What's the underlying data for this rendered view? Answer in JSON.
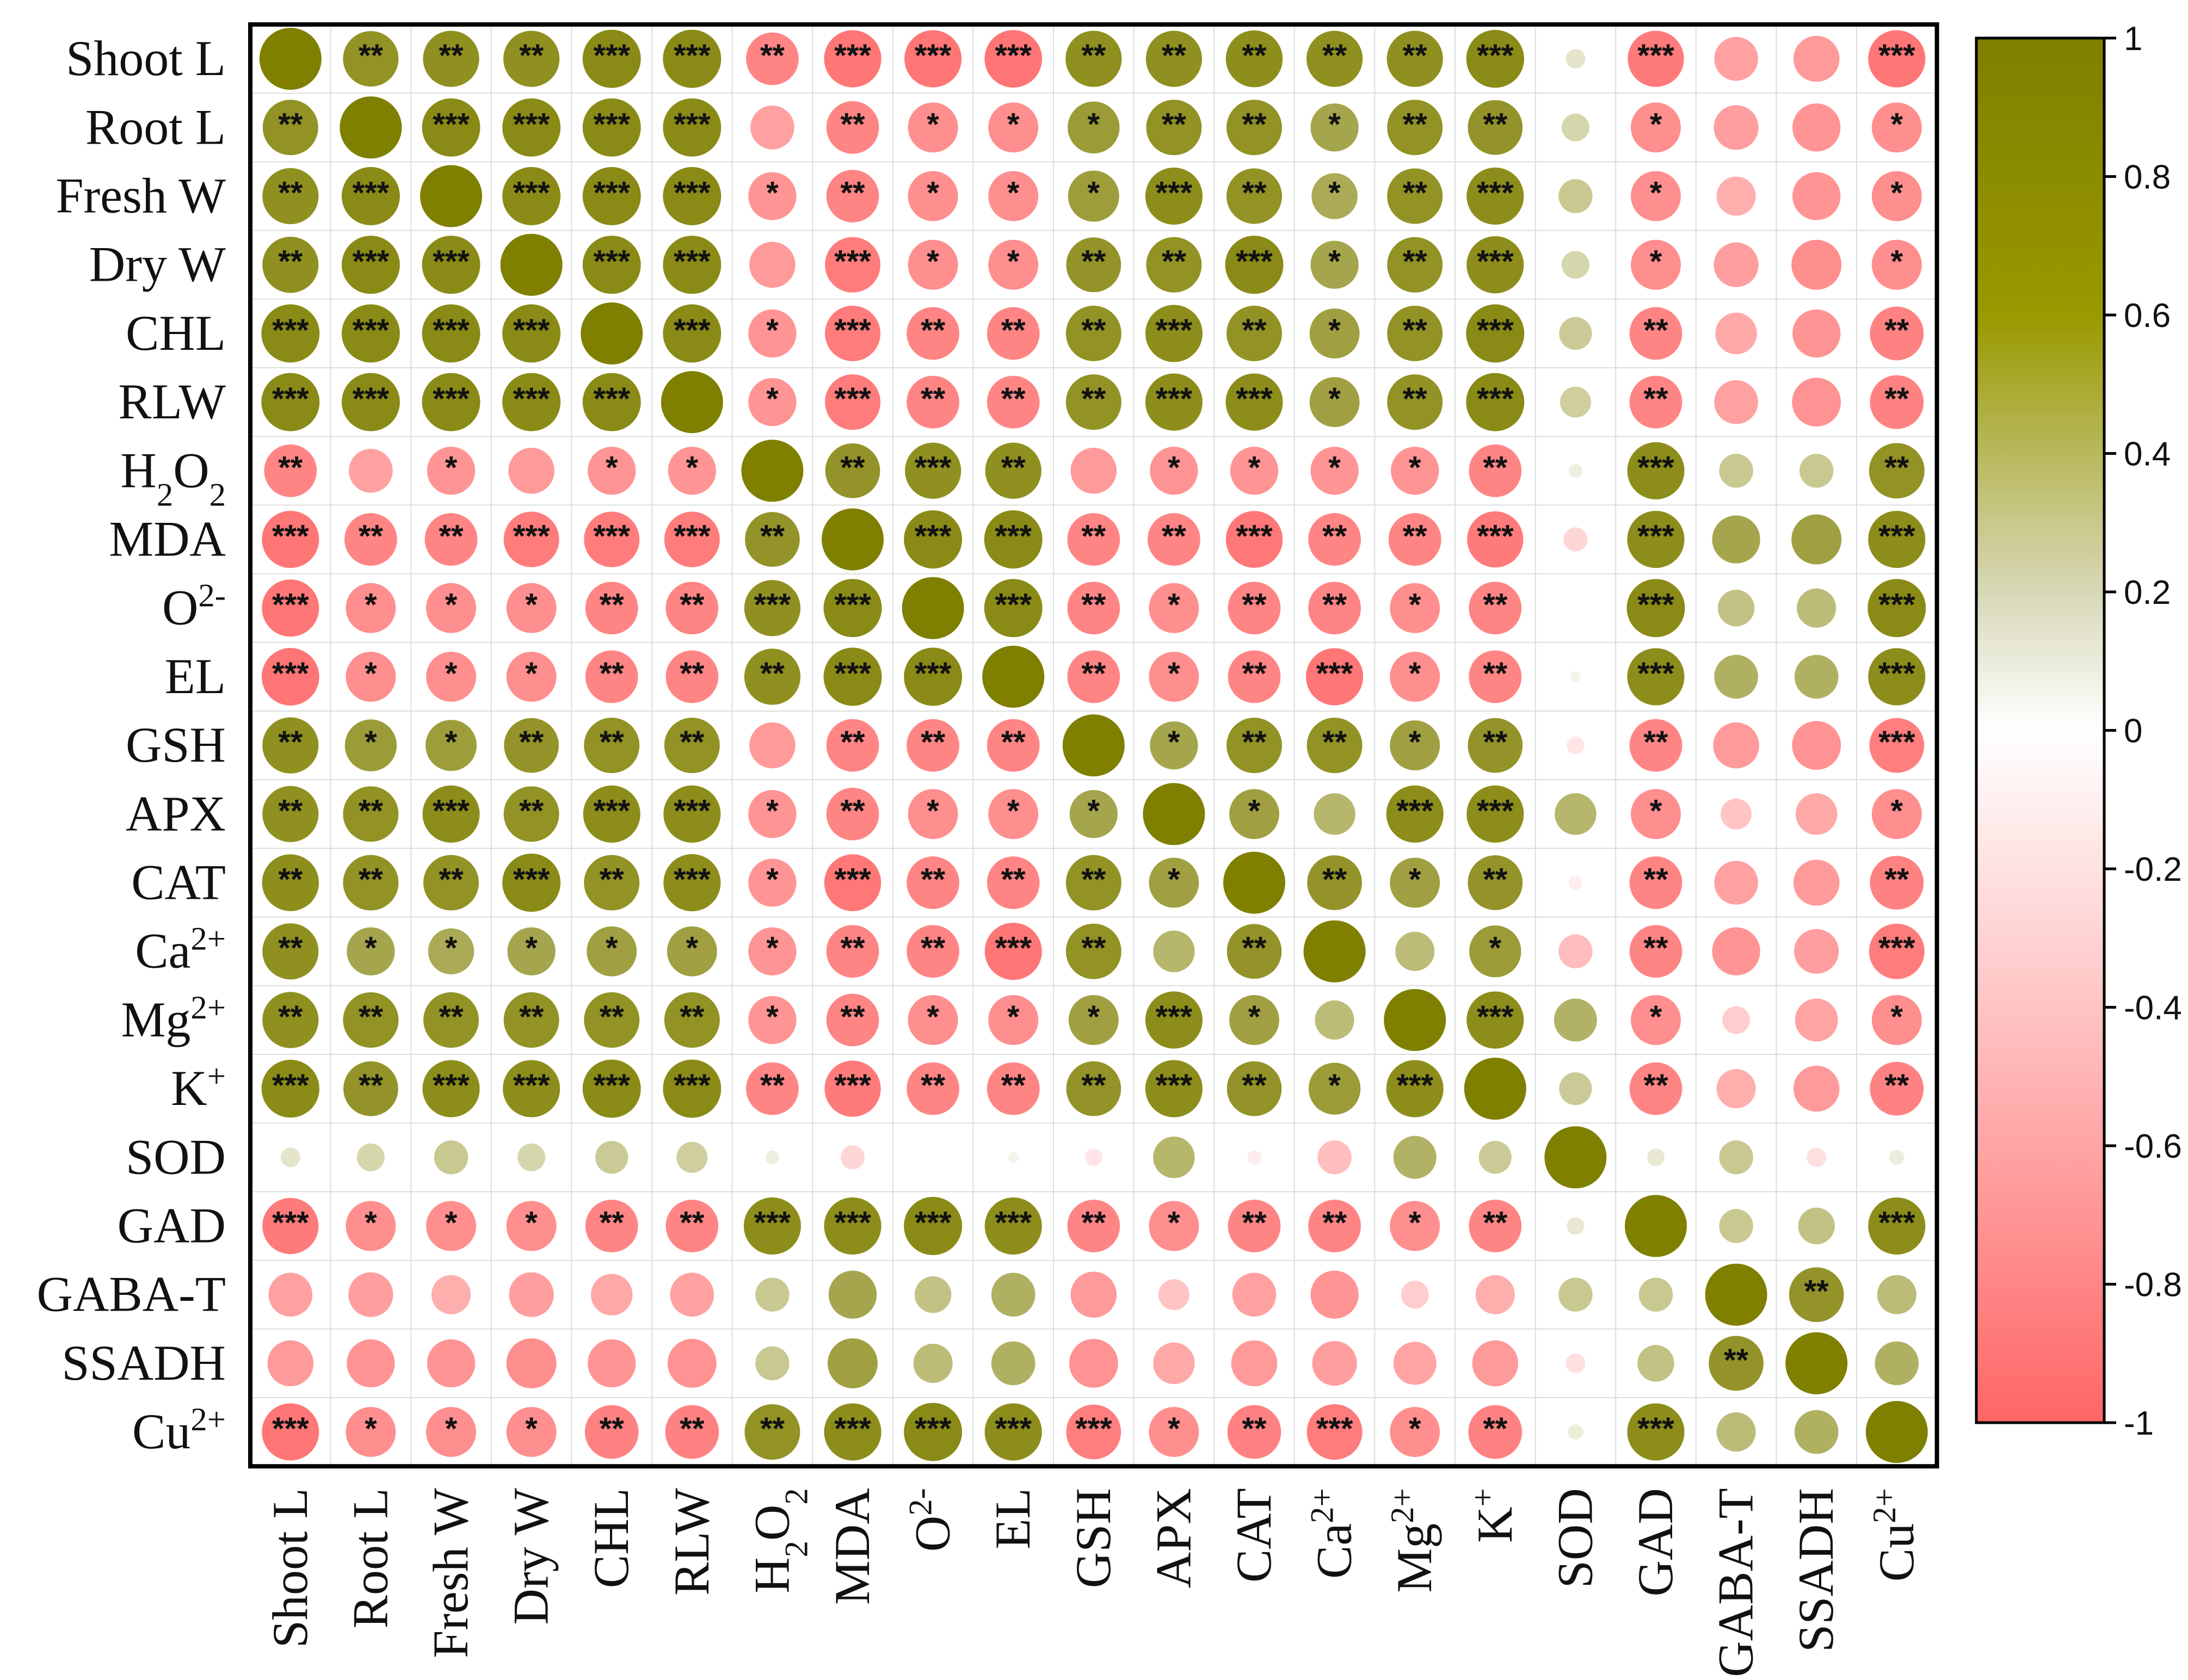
{
  "chart_data": {
    "type": "heatmap",
    "title": "",
    "subtype": "correlation-circle-matrix",
    "variables": [
      {
        "key": "Shoot L",
        "base": "Shoot L",
        "sub": "",
        "sup": ""
      },
      {
        "key": "Root L",
        "base": "Root L",
        "sub": "",
        "sup": ""
      },
      {
        "key": "Fresh W",
        "base": "Fresh W",
        "sub": "",
        "sup": ""
      },
      {
        "key": "Dry W",
        "base": "Dry W",
        "sub": "",
        "sup": ""
      },
      {
        "key": "CHL",
        "base": "CHL",
        "sub": "",
        "sup": ""
      },
      {
        "key": "RLW",
        "base": "RLW",
        "sub": "",
        "sup": ""
      },
      {
        "key": "H2O2",
        "base": "H",
        "sub": "2",
        "mid": "O",
        "sub2": "2",
        "sup": ""
      },
      {
        "key": "MDA",
        "base": "MDA",
        "sub": "",
        "sup": ""
      },
      {
        "key": "O2-",
        "base": "O",
        "sub": "",
        "sup": "2-"
      },
      {
        "key": "EL",
        "base": "EL",
        "sub": "",
        "sup": ""
      },
      {
        "key": "GSH",
        "base": "GSH",
        "sub": "",
        "sup": ""
      },
      {
        "key": "APX",
        "base": "APX",
        "sub": "",
        "sup": ""
      },
      {
        "key": "CAT",
        "base": "CAT",
        "sub": "",
        "sup": ""
      },
      {
        "key": "Ca2+",
        "base": "Ca",
        "sub": "",
        "sup": "2+"
      },
      {
        "key": "Mg2+",
        "base": "Mg",
        "sub": "",
        "sup": "2+"
      },
      {
        "key": "K+",
        "base": "K",
        "sub": "",
        "sup": "+"
      },
      {
        "key": "SOD",
        "base": "SOD",
        "sub": "",
        "sup": ""
      },
      {
        "key": "GAD",
        "base": "GAD",
        "sub": "",
        "sup": ""
      },
      {
        "key": "GABA-T",
        "base": "GABA-T",
        "sub": "",
        "sup": ""
      },
      {
        "key": "SSADH",
        "base": "SSADH",
        "sub": "",
        "sup": ""
      },
      {
        "key": "Cu2+",
        "base": "Cu",
        "sub": "",
        "sup": "2+"
      }
    ],
    "values": [
      [
        1.0,
        0.8,
        0.82,
        0.82,
        0.88,
        0.88,
        -0.72,
        -0.85,
        -0.85,
        -0.86,
        0.82,
        0.82,
        0.84,
        0.82,
        0.82,
        0.87,
        0.1,
        -0.82,
        -0.5,
        -0.55,
        -0.85
      ],
      [
        0.8,
        1.0,
        0.88,
        0.88,
        0.88,
        0.88,
        -0.5,
        -0.72,
        -0.65,
        -0.65,
        0.7,
        0.8,
        0.8,
        0.6,
        0.8,
        0.78,
        0.2,
        -0.65,
        -0.52,
        -0.6,
        -0.65
      ],
      [
        0.82,
        0.88,
        1.0,
        0.88,
        0.88,
        0.88,
        -0.6,
        -0.72,
        -0.65,
        -0.65,
        0.68,
        0.85,
        0.8,
        0.55,
        0.8,
        0.85,
        0.3,
        -0.65,
        -0.4,
        -0.6,
        -0.65
      ],
      [
        0.82,
        0.88,
        0.88,
        1.0,
        0.88,
        0.88,
        -0.55,
        -0.8,
        -0.65,
        -0.65,
        0.78,
        0.8,
        0.88,
        0.6,
        0.8,
        0.85,
        0.2,
        -0.65,
        -0.52,
        -0.65,
        -0.65
      ],
      [
        0.88,
        0.88,
        0.88,
        0.88,
        1.0,
        0.88,
        -0.6,
        -0.8,
        -0.72,
        -0.72,
        0.8,
        0.85,
        0.8,
        0.65,
        0.8,
        0.88,
        0.28,
        -0.72,
        -0.45,
        -0.6,
        -0.75
      ],
      [
        0.88,
        0.88,
        0.88,
        0.88,
        0.88,
        1.0,
        -0.6,
        -0.8,
        -0.72,
        -0.72,
        0.8,
        0.85,
        0.85,
        0.65,
        0.8,
        0.88,
        0.25,
        -0.72,
        -0.5,
        -0.62,
        -0.75
      ],
      [
        -0.72,
        -0.5,
        -0.6,
        -0.55,
        -0.6,
        -0.6,
        1.0,
        0.78,
        0.82,
        0.82,
        -0.55,
        -0.6,
        -0.6,
        -0.6,
        -0.6,
        -0.72,
        0.05,
        0.85,
        0.3,
        0.3,
        0.8
      ],
      [
        -0.85,
        -0.72,
        -0.72,
        -0.8,
        -0.8,
        -0.8,
        0.78,
        1.0,
        0.88,
        0.88,
        -0.72,
        -0.72,
        -0.84,
        -0.72,
        -0.72,
        -0.82,
        -0.15,
        0.85,
        0.6,
        0.65,
        0.85
      ],
      [
        -0.85,
        -0.65,
        -0.65,
        -0.65,
        -0.72,
        -0.72,
        0.82,
        0.88,
        1.0,
        0.88,
        -0.72,
        -0.65,
        -0.72,
        -0.72,
        -0.65,
        -0.72,
        0.0,
        0.88,
        0.35,
        0.4,
        0.88
      ],
      [
        -0.86,
        -0.65,
        -0.65,
        -0.65,
        -0.72,
        -0.72,
        0.82,
        0.88,
        0.88,
        1.0,
        -0.72,
        -0.65,
        -0.72,
        -0.85,
        -0.65,
        -0.72,
        0.03,
        0.85,
        0.5,
        0.5,
        0.85
      ],
      [
        0.82,
        0.7,
        0.68,
        0.78,
        0.8,
        0.8,
        -0.55,
        -0.72,
        -0.72,
        -0.72,
        1.0,
        0.6,
        0.8,
        0.8,
        0.65,
        0.78,
        -0.08,
        -0.72,
        -0.55,
        -0.62,
        -0.78
      ],
      [
        0.82,
        0.8,
        0.85,
        0.8,
        0.85,
        0.85,
        -0.6,
        -0.72,
        -0.65,
        -0.65,
        0.6,
        1.0,
        0.65,
        0.45,
        0.85,
        0.85,
        0.45,
        -0.65,
        -0.25,
        -0.45,
        -0.65
      ],
      [
        0.84,
        0.8,
        0.8,
        0.88,
        0.8,
        0.85,
        -0.6,
        -0.84,
        -0.72,
        -0.72,
        0.8,
        0.65,
        1.0,
        0.78,
        0.65,
        0.78,
        -0.05,
        -0.72,
        -0.5,
        -0.55,
        -0.75
      ],
      [
        0.82,
        0.6,
        0.55,
        0.6,
        0.65,
        0.65,
        -0.6,
        -0.72,
        -0.72,
        -0.85,
        0.8,
        0.45,
        0.78,
        1.0,
        0.4,
        0.7,
        -0.3,
        -0.72,
        -0.6,
        -0.52,
        -0.8
      ],
      [
        0.82,
        0.8,
        0.8,
        0.8,
        0.8,
        0.8,
        -0.6,
        -0.72,
        -0.65,
        -0.65,
        0.65,
        0.85,
        0.65,
        0.4,
        1.0,
        0.85,
        0.48,
        -0.65,
        -0.2,
        -0.48,
        -0.65
      ],
      [
        0.87,
        0.78,
        0.85,
        0.85,
        0.88,
        0.88,
        -0.72,
        -0.82,
        -0.72,
        -0.72,
        0.78,
        0.85,
        0.78,
        0.7,
        0.85,
        1.0,
        0.28,
        -0.72,
        -0.4,
        -0.55,
        -0.75
      ],
      [
        0.1,
        0.2,
        0.3,
        0.2,
        0.28,
        0.25,
        0.05,
        -0.15,
        0.0,
        0.03,
        -0.08,
        0.45,
        -0.05,
        -0.3,
        0.48,
        0.28,
        1.0,
        0.08,
        0.3,
        -0.1,
        0.06
      ],
      [
        -0.82,
        -0.65,
        -0.65,
        -0.65,
        -0.72,
        -0.72,
        0.85,
        0.85,
        0.88,
        0.85,
        -0.72,
        -0.65,
        -0.72,
        -0.72,
        -0.65,
        -0.72,
        0.08,
        1.0,
        0.3,
        0.35,
        0.85
      ],
      [
        -0.5,
        -0.52,
        -0.4,
        -0.52,
        -0.45,
        -0.5,
        0.3,
        0.6,
        0.35,
        0.5,
        -0.55,
        -0.25,
        -0.5,
        -0.6,
        -0.2,
        -0.4,
        0.3,
        0.3,
        1.0,
        0.78,
        0.4
      ],
      [
        -0.55,
        -0.6,
        -0.6,
        -0.65,
        -0.6,
        -0.62,
        0.3,
        0.65,
        0.4,
        0.5,
        -0.62,
        -0.45,
        -0.55,
        -0.52,
        -0.48,
        -0.55,
        -0.1,
        0.35,
        0.78,
        1.0,
        0.5
      ],
      [
        -0.85,
        -0.65,
        -0.65,
        -0.65,
        -0.75,
        -0.75,
        0.8,
        0.85,
        0.88,
        0.85,
        -0.78,
        -0.65,
        -0.75,
        -0.8,
        -0.65,
        -0.75,
        0.06,
        0.85,
        0.4,
        0.5,
        1.0
      ]
    ],
    "significance": [
      [
        "",
        "**",
        "**",
        "**",
        "***",
        "***",
        "**",
        "***",
        "***",
        "***",
        "**",
        "**",
        "**",
        "**",
        "**",
        "***",
        "",
        "***",
        "",
        "",
        "***"
      ],
      [
        "**",
        "",
        "***",
        "***",
        "***",
        "***",
        "",
        "**",
        "*",
        "*",
        "*",
        "**",
        "**",
        "*",
        "**",
        "**",
        "",
        "*",
        "",
        "",
        "*"
      ],
      [
        "**",
        "***",
        "",
        "***",
        "***",
        "***",
        "*",
        "**",
        "*",
        "*",
        "*",
        "***",
        "**",
        "*",
        "**",
        "***",
        "",
        "*",
        "",
        "",
        "*"
      ],
      [
        "**",
        "***",
        "***",
        "",
        "***",
        "***",
        "",
        "***",
        "*",
        "*",
        "**",
        "**",
        "***",
        "*",
        "**",
        "***",
        "",
        "*",
        "",
        "",
        "*"
      ],
      [
        "***",
        "***",
        "***",
        "***",
        "",
        "***",
        "*",
        "***",
        "**",
        "**",
        "**",
        "***",
        "**",
        "*",
        "**",
        "***",
        "",
        "**",
        "",
        "",
        "**"
      ],
      [
        "***",
        "***",
        "***",
        "***",
        "***",
        "",
        "*",
        "***",
        "**",
        "**",
        "**",
        "***",
        "***",
        "*",
        "**",
        "***",
        "",
        "**",
        "",
        "",
        "**"
      ],
      [
        "**",
        "",
        "*",
        "",
        "*",
        "*",
        "",
        "**",
        "***",
        "**",
        "",
        "*",
        "*",
        "*",
        "*",
        "**",
        "",
        "***",
        "",
        "",
        "**"
      ],
      [
        "***",
        "**",
        "**",
        "***",
        "***",
        "***",
        "**",
        "",
        "***",
        "***",
        "**",
        "**",
        "***",
        "**",
        "**",
        "***",
        "",
        "***",
        "",
        "",
        "***"
      ],
      [
        "***",
        "*",
        "*",
        "*",
        "**",
        "**",
        "***",
        "***",
        "",
        "***",
        "**",
        "*",
        "**",
        "**",
        "*",
        "**",
        "",
        "***",
        "",
        "",
        "***"
      ],
      [
        "***",
        "*",
        "*",
        "*",
        "**",
        "**",
        "**",
        "***",
        "***",
        "",
        "**",
        "*",
        "**",
        "***",
        "*",
        "**",
        "",
        "***",
        "",
        "",
        "***"
      ],
      [
        "**",
        "*",
        "*",
        "**",
        "**",
        "**",
        "",
        "**",
        "**",
        "**",
        "",
        "*",
        "**",
        "**",
        "*",
        "**",
        "",
        "**",
        "",
        "",
        "***"
      ],
      [
        "**",
        "**",
        "***",
        "**",
        "***",
        "***",
        "*",
        "**",
        "*",
        "*",
        "*",
        "",
        "*",
        "",
        "***",
        "***",
        "",
        "*",
        "",
        "",
        "*"
      ],
      [
        "**",
        "**",
        "**",
        "***",
        "**",
        "***",
        "*",
        "***",
        "**",
        "**",
        "**",
        "*",
        "",
        "**",
        "*",
        "**",
        "",
        "**",
        "",
        "",
        "**"
      ],
      [
        "**",
        "*",
        "*",
        "*",
        "*",
        "*",
        "*",
        "**",
        "**",
        "***",
        "**",
        "",
        "**",
        "",
        "",
        "*",
        "",
        "**",
        "",
        "",
        "***"
      ],
      [
        "**",
        "**",
        "**",
        "**",
        "**",
        "**",
        "*",
        "**",
        "*",
        "*",
        "*",
        "***",
        "*",
        "",
        "",
        "***",
        "",
        "*",
        "",
        "",
        "*"
      ],
      [
        "***",
        "**",
        "***",
        "***",
        "***",
        "***",
        "**",
        "***",
        "**",
        "**",
        "**",
        "***",
        "**",
        "*",
        "***",
        "",
        "",
        "**",
        "",
        "",
        "**"
      ],
      [
        "",
        "",
        "",
        "",
        "",
        "",
        "",
        "",
        "",
        "",
        "",
        "",
        "",
        "",
        "",
        "",
        "",
        "",
        "",
        "",
        ""
      ],
      [
        "***",
        "*",
        "*",
        "*",
        "**",
        "**",
        "***",
        "***",
        "***",
        "***",
        "**",
        "*",
        "**",
        "**",
        "*",
        "**",
        "",
        "",
        "",
        "",
        "***"
      ],
      [
        "",
        "",
        "",
        "",
        "",
        "",
        "",
        "",
        "",
        "",
        "",
        "",
        "",
        "",
        "",
        "",
        "",
        "",
        "",
        "**",
        ""
      ],
      [
        "",
        "",
        "",
        "",
        "",
        "",
        "",
        "",
        "",
        "",
        "",
        "",
        "",
        "",
        "",
        "",
        "",
        "",
        "**",
        "",
        ""
      ],
      [
        "***",
        "*",
        "*",
        "*",
        "**",
        "**",
        "**",
        "***",
        "***",
        "***",
        "***",
        "*",
        "**",
        "***",
        "*",
        "**",
        "",
        "***",
        "",
        "",
        ""
      ]
    ],
    "colorbar": {
      "min": -1,
      "max": 1,
      "ticks": [
        1,
        0.8,
        0.6,
        0.4,
        0.2,
        0,
        -0.2,
        -0.4,
        -0.6,
        -0.8,
        -1
      ],
      "tick_labels": [
        "1",
        "0.8",
        "0.6",
        "0.4",
        "0.2",
        "0",
        "-0.2",
        "-0.4",
        "-0.6",
        "-0.8",
        "-1"
      ],
      "positive_color": "#7f7f00",
      "zero_color": "#ffffff",
      "negative_color": "#ff6666"
    },
    "legend_position": "right",
    "grid": true
  }
}
